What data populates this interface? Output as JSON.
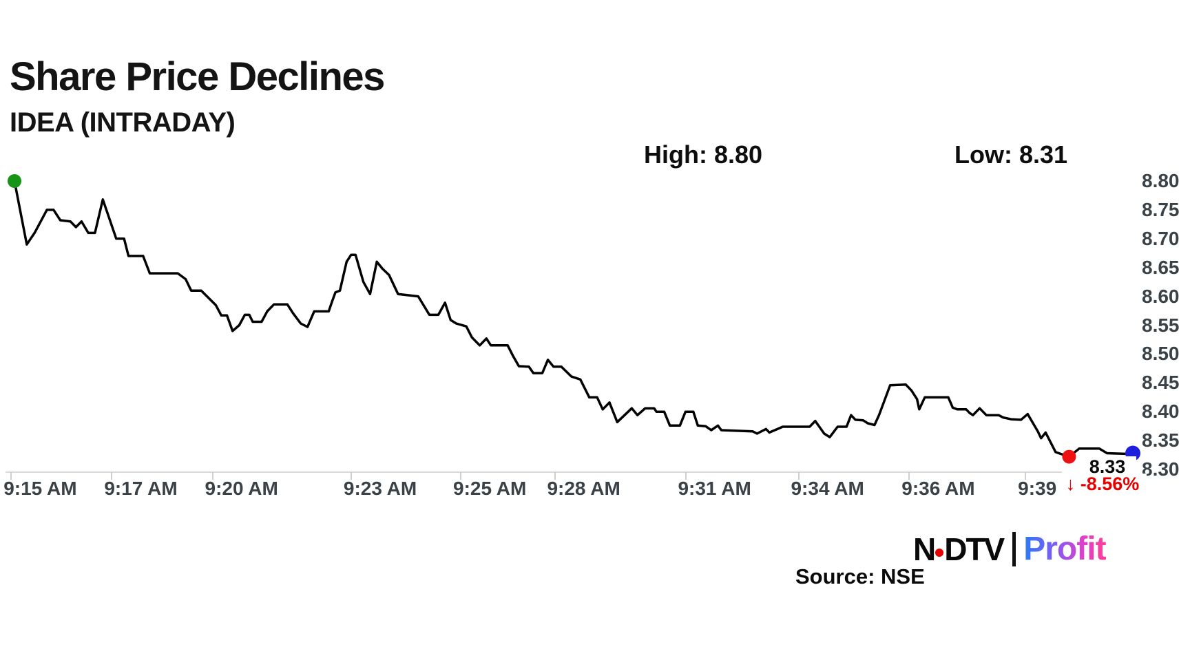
{
  "header": {
    "title": "Share Price Declines",
    "subtitle": "IDEA (INTRADAY)"
  },
  "stats": {
    "high_label": "High: 8.80",
    "low_label": "Low: 8.31"
  },
  "annotations": {
    "last_price": "8.33",
    "change_arrow": "↓",
    "change_pct": "-8.56%"
  },
  "footer": {
    "ndtv": "N",
    "ndtv_rest": "DTV",
    "profit": "Profit",
    "source": "Source: NSE"
  },
  "colors": {
    "line": "#010101",
    "start_dot": "#169416",
    "low_dot": "#ee1111",
    "end_dot": "#1e1edd",
    "change_text": "#e80000",
    "axis_text": "#3a4248",
    "axis_line": "#d9d9d9"
  },
  "chart_data": {
    "type": "line",
    "title": "Share Price Declines",
    "subtitle": "IDEA (INTRADAY)",
    "high": 8.8,
    "low": 8.31,
    "last": 8.33,
    "change_pct": -8.56,
    "xlabel": "",
    "ylabel": "",
    "grid": false,
    "legend_position": "none",
    "y_axis": {
      "min": 8.3,
      "max": 8.8,
      "tick_step": 0.05,
      "ticks": [
        8.8,
        8.75,
        8.7,
        8.65,
        8.6,
        8.55,
        8.5,
        8.45,
        8.4,
        8.35,
        8.3
      ],
      "side": "right"
    },
    "x_axis": {
      "note": "pos is percent across the session, 9:15 AM to ~9:41 AM",
      "ticks": [
        {
          "label": "9:15 AM",
          "pos": 2.3
        },
        {
          "label": "9:17 AM",
          "pos": 11.3
        },
        {
          "label": "9:20 AM",
          "pos": 20.3
        },
        {
          "label": "9:23 AM",
          "pos": 32.7
        },
        {
          "label": "9:25 AM",
          "pos": 42.5
        },
        {
          "label": "9:28 AM",
          "pos": 50.9
        },
        {
          "label": "9:31 AM",
          "pos": 62.6
        },
        {
          "label": "9:34 AM",
          "pos": 72.7
        },
        {
          "label": "9:36 AM",
          "pos": 82.6
        },
        {
          "label": "9:39 AM",
          "pos": 93.0
        }
      ]
    },
    "series": [
      {
        "name": "IDEA share price",
        "points": [
          [
            0,
            8.8
          ],
          [
            1.1,
            8.69
          ],
          [
            1.8,
            8.71
          ],
          [
            2.9,
            8.75
          ],
          [
            3.5,
            8.75
          ],
          [
            4.1,
            8.732
          ],
          [
            5.0,
            8.73
          ],
          [
            5.5,
            8.72
          ],
          [
            6.0,
            8.73
          ],
          [
            6.6,
            8.71
          ],
          [
            7.2,
            8.71
          ],
          [
            7.9,
            8.768
          ],
          [
            9.1,
            8.7
          ],
          [
            9.8,
            8.7
          ],
          [
            10.2,
            8.67
          ],
          [
            11.5,
            8.67
          ],
          [
            12.1,
            8.64
          ],
          [
            14.6,
            8.64
          ],
          [
            15.3,
            8.63
          ],
          [
            15.8,
            8.61
          ],
          [
            16.7,
            8.61
          ],
          [
            18.0,
            8.585
          ],
          [
            18.5,
            8.567
          ],
          [
            19.0,
            8.567
          ],
          [
            19.5,
            8.54
          ],
          [
            20.1,
            8.55
          ],
          [
            20.6,
            8.568
          ],
          [
            21.0,
            8.568
          ],
          [
            21.3,
            8.556
          ],
          [
            22.1,
            8.556
          ],
          [
            22.6,
            8.574
          ],
          [
            23.2,
            8.586
          ],
          [
            24.4,
            8.586
          ],
          [
            24.9,
            8.571
          ],
          [
            25.6,
            8.553
          ],
          [
            26.2,
            8.547
          ],
          [
            26.8,
            8.574
          ],
          [
            28.1,
            8.574
          ],
          [
            28.4,
            8.591
          ],
          [
            28.7,
            8.607
          ],
          [
            29.1,
            8.61
          ],
          [
            29.7,
            8.66
          ],
          [
            30.1,
            8.672
          ],
          [
            30.5,
            8.672
          ],
          [
            31.2,
            8.625
          ],
          [
            31.8,
            8.604
          ],
          [
            32.4,
            8.66
          ],
          [
            32.9,
            8.648
          ],
          [
            33.5,
            8.637
          ],
          [
            34.3,
            8.604
          ],
          [
            36.1,
            8.6
          ],
          [
            37.1,
            8.568
          ],
          [
            37.9,
            8.568
          ],
          [
            38.5,
            8.589
          ],
          [
            39.0,
            8.559
          ],
          [
            39.5,
            8.553
          ],
          [
            40.4,
            8.548
          ],
          [
            40.9,
            8.529
          ],
          [
            41.6,
            8.515
          ],
          [
            42.2,
            8.527
          ],
          [
            42.6,
            8.515
          ],
          [
            44.1,
            8.515
          ],
          [
            44.6,
            8.496
          ],
          [
            45.1,
            8.479
          ],
          [
            46.0,
            8.478
          ],
          [
            46.4,
            8.467
          ],
          [
            47.2,
            8.467
          ],
          [
            47.7,
            8.49
          ],
          [
            48.2,
            8.478
          ],
          [
            48.9,
            8.478
          ],
          [
            49.8,
            8.461
          ],
          [
            50.6,
            8.456
          ],
          [
            51.4,
            8.425
          ],
          [
            52.1,
            8.425
          ],
          [
            52.6,
            8.404
          ],
          [
            53.2,
            8.416
          ],
          [
            53.9,
            8.382
          ],
          [
            55.2,
            8.406
          ],
          [
            55.7,
            8.394
          ],
          [
            56.4,
            8.406
          ],
          [
            57.2,
            8.406
          ],
          [
            57.4,
            8.4
          ],
          [
            58.1,
            8.4
          ],
          [
            58.6,
            8.376
          ],
          [
            59.5,
            8.376
          ],
          [
            60.0,
            8.4
          ],
          [
            60.7,
            8.4
          ],
          [
            61.1,
            8.376
          ],
          [
            61.8,
            8.375
          ],
          [
            62.3,
            8.368
          ],
          [
            62.9,
            8.376
          ],
          [
            63.2,
            8.368
          ],
          [
            66.0,
            8.366
          ],
          [
            66.4,
            8.362
          ],
          [
            67.2,
            8.37
          ],
          [
            67.5,
            8.364
          ],
          [
            68.7,
            8.374
          ],
          [
            71.1,
            8.374
          ],
          [
            71.6,
            8.384
          ],
          [
            72.4,
            8.362
          ],
          [
            72.9,
            8.356
          ],
          [
            73.6,
            8.374
          ],
          [
            74.4,
            8.374
          ],
          [
            74.8,
            8.394
          ],
          [
            75.2,
            8.386
          ],
          [
            75.9,
            8.385
          ],
          [
            76.3,
            8.38
          ],
          [
            76.9,
            8.377
          ],
          [
            77.3,
            8.394
          ],
          [
            78.3,
            8.446
          ],
          [
            79.7,
            8.447
          ],
          [
            80.2,
            8.437
          ],
          [
            80.7,
            8.422
          ],
          [
            80.9,
            8.404
          ],
          [
            81.4,
            8.425
          ],
          [
            83.5,
            8.425
          ],
          [
            83.9,
            8.407
          ],
          [
            84.3,
            8.404
          ],
          [
            85.1,
            8.404
          ],
          [
            85.4,
            8.398
          ],
          [
            85.7,
            8.394
          ],
          [
            86.3,
            8.406
          ],
          [
            86.9,
            8.394
          ],
          [
            88.0,
            8.394
          ],
          [
            88.4,
            8.39
          ],
          [
            88.9,
            8.388
          ],
          [
            89.1,
            8.387
          ],
          [
            90.0,
            8.386
          ],
          [
            90.6,
            8.396
          ],
          [
            91.5,
            8.366
          ],
          [
            91.8,
            8.354
          ],
          [
            92.2,
            8.364
          ],
          [
            93.1,
            8.33
          ],
          [
            94.3,
            8.322
          ],
          [
            95.2,
            8.336
          ],
          [
            97.0,
            8.336
          ],
          [
            97.7,
            8.328
          ],
          [
            99.3,
            8.327
          ],
          [
            100,
            8.328
          ]
        ]
      }
    ],
    "markers": [
      {
        "name": "start-dot",
        "pos": 0,
        "price": 8.8,
        "color": "#169416",
        "r": 10
      },
      {
        "name": "low-dot",
        "pos": 94.3,
        "price": 8.322,
        "color": "#ee1111",
        "r": 10
      },
      {
        "name": "end-dot",
        "pos": 100,
        "price": 8.328,
        "color": "#1e1edd",
        "r": 11
      }
    ]
  }
}
